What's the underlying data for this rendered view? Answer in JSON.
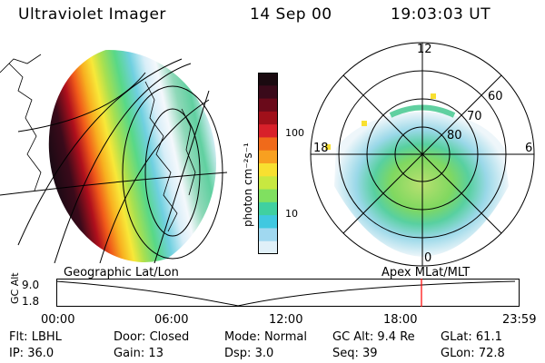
{
  "header": {
    "title": "Ultraviolet Imager",
    "date": "14 Sep 00",
    "time": "19:03:03 UT"
  },
  "colorbar": {
    "unit_label": "photon cm⁻²s⁻¹",
    "tick_labels": [
      "100",
      "10"
    ],
    "colors": [
      "#1a0a10",
      "#3a0a1a",
      "#6a0a1a",
      "#a0101a",
      "#d8202a",
      "#f06a1a",
      "#f8a020",
      "#f8e030",
      "#c8e840",
      "#80e060",
      "#40d0a0",
      "#40c8e0",
      "#a0d8f0",
      "#e0f0f8"
    ]
  },
  "polar_plot": {
    "mlt_labels": [
      "12",
      "18",
      "6",
      "0"
    ],
    "mlat_labels": [
      "60",
      "70",
      "80"
    ]
  },
  "panel_labels": {
    "left": "Geographic Lat/Lon",
    "right": "Apex MLat/MLT"
  },
  "timeline": {
    "axis_label": "GC Alt",
    "y_ticks": [
      "9.0",
      "1.8"
    ],
    "x_ticks": [
      "00:00",
      "06:00",
      "12:00",
      "18:00",
      "23:59"
    ],
    "marker_color": "#ff0000"
  },
  "info": {
    "flt": {
      "label": "Flt:",
      "value": "LBHL"
    },
    "ip": {
      "label": "IP:",
      "value": "36.0"
    },
    "door": {
      "label": "Door:",
      "value": "Closed"
    },
    "gain": {
      "label": "Gain:",
      "value": "13"
    },
    "mode": {
      "label": "Mode:",
      "value": "Normal"
    },
    "dsp": {
      "label": "Dsp:",
      "value": "3.0"
    },
    "gcalt": {
      "label": "GC Alt:",
      "value": "9.4 Re"
    },
    "seq": {
      "label": "Seq:",
      "value": "39"
    },
    "glat": {
      "label": "GLat:",
      "value": "61.1"
    },
    "glon": {
      "label": "GLon:",
      "value": "72.8"
    }
  }
}
